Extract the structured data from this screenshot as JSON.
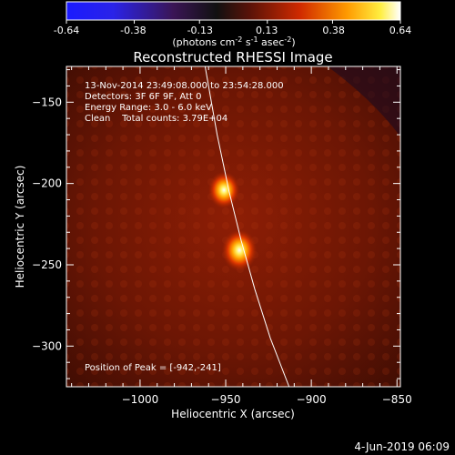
{
  "colorbar": {
    "ticks": [
      "-0.64",
      "-0.38",
      "-0.13",
      "0.13",
      "0.38",
      "0.64"
    ],
    "tick_values": [
      -0.64,
      -0.38,
      -0.13,
      0.13,
      0.38,
      0.64
    ],
    "range": [
      -0.64,
      0.64
    ],
    "units_label": "(photons cm",
    "units_exp1": "-2",
    "units_mid": " s",
    "units_exp2": "-1",
    "units_mid2": " asec",
    "units_exp3": "-2",
    "units_close": ")"
  },
  "chart_data": {
    "type": "heatmap",
    "title": "Reconstructed RHESSI Image",
    "xlabel": "Heliocentric X (arcsec)",
    "ylabel": "Heliocentric Y (arcsec)",
    "xlim": [
      -1043,
      -848
    ],
    "ylim": [
      -325,
      -128
    ],
    "x_ticks": [
      -1000,
      -950,
      -900,
      -850
    ],
    "x_tick_labels": [
      "−1000",
      "−950",
      "−900",
      "−850"
    ],
    "y_ticks": [
      -150,
      -200,
      -250,
      -300
    ],
    "y_tick_labels": [
      "−150",
      "−200",
      "−250",
      "−300"
    ],
    "sources": [
      {
        "x": -942,
        "y": -241,
        "peak": 0.64
      },
      {
        "x": -951,
        "y": -204,
        "peak": 0.46
      }
    ],
    "limb": [
      [
        -962,
        -128
      ],
      [
        -955,
        -170
      ],
      [
        -948,
        -205
      ],
      [
        -941,
        -235
      ],
      [
        -933,
        -265
      ],
      [
        -924,
        -295
      ],
      [
        -913,
        -325
      ]
    ],
    "annotations": {
      "time": "13-Nov-2014 23:49:08.000 to 23:54:28.000",
      "detectors": "Detectors: 3F 6F 9F, Att 0",
      "energy": "Energy Range: 3.0 - 6.0 keV",
      "clean": "Clean    Total counts: 3.79E+04",
      "peak": "Position of Peak = [-942,-241]"
    }
  },
  "footer": {
    "date": "4-Jun-2019 06:09"
  }
}
